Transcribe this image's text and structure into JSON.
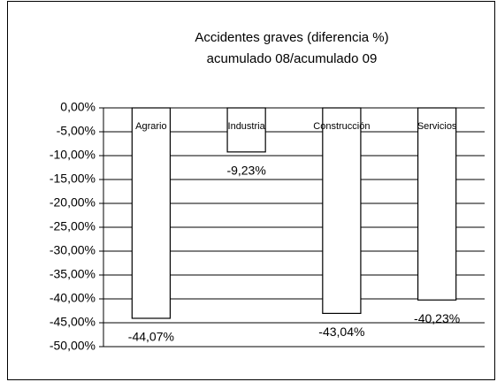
{
  "chart_data": {
    "type": "bar",
    "title": [
      "Accidentes graves (diferencia %)",
      "acumulado 08/acumulado 09"
    ],
    "categories": [
      "Agrario",
      "Industria",
      "Construcción",
      "Servicios"
    ],
    "values": [
      -44.07,
      -9.23,
      -43.04,
      -40.23
    ],
    "value_labels": [
      "-44,07%",
      "-9,23%",
      "-43,04%",
      "-40,23%"
    ],
    "color": "#ffffff",
    "ylim": [
      -50,
      0
    ],
    "yticks": [
      {
        "value": 0,
        "label": "0,00%"
      },
      {
        "value": -5,
        "label": "-5,00%"
      },
      {
        "value": -10,
        "label": "-10,00%"
      },
      {
        "value": -15,
        "label": "-15,00%"
      },
      {
        "value": -20,
        "label": "-20,00%"
      },
      {
        "value": -25,
        "label": "-25,00%"
      },
      {
        "value": -30,
        "label": "-30,00%"
      },
      {
        "value": -35,
        "label": "-35,00%"
      },
      {
        "value": -40,
        "label": "-40,00%"
      },
      {
        "value": -45,
        "label": "-45,00%"
      },
      {
        "value": -50,
        "label": "-50,00%"
      }
    ],
    "grid": true
  }
}
